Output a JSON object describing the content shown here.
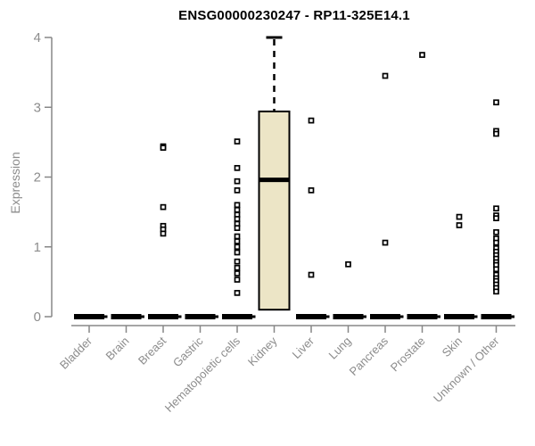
{
  "colors": {
    "title": "#000000",
    "axis": "#878787",
    "label": "#8c8c8c",
    "box_fill": "#ece5c6",
    "box_border": "#000000",
    "point": "#000000"
  },
  "chart_data": {
    "type": "boxplot",
    "title": "ENSG00000230247 - RP11-325E14.1",
    "ylabel": "Expression",
    "xlabel": "",
    "ylim": [
      0,
      4
    ],
    "yticks": [
      0,
      1,
      2,
      3,
      4
    ],
    "grid": false,
    "legend": false,
    "categories": [
      "Bladder",
      "Brain",
      "Breast",
      "Gastric",
      "Hematopoietic cells",
      "Kidney",
      "Liver",
      "Lung",
      "Pancreas",
      "Prostate",
      "Skin",
      "Unknown / Other"
    ],
    "boxes": [
      {
        "category": "Bladder",
        "q1": 0,
        "median": 0,
        "q3": 0,
        "whisker_low": 0,
        "whisker_high": 0,
        "outliers": []
      },
      {
        "category": "Brain",
        "q1": 0,
        "median": 0,
        "q3": 0,
        "whisker_low": 0,
        "whisker_high": 0,
        "outliers": []
      },
      {
        "category": "Breast",
        "q1": 0,
        "median": 0,
        "q3": 0,
        "whisker_low": 0,
        "whisker_high": 0,
        "outliers": [
          2.44,
          2.42,
          1.57,
          1.3,
          1.25,
          1.19
        ]
      },
      {
        "category": "Gastric",
        "q1": 0,
        "median": 0,
        "q3": 0,
        "whisker_low": 0,
        "whisker_high": 0,
        "outliers": []
      },
      {
        "category": "Hematopoietic cells",
        "q1": 0,
        "median": 0,
        "q3": 0,
        "whisker_low": 0,
        "whisker_high": 0,
        "outliers": [
          2.51,
          2.13,
          1.94,
          1.81,
          1.6,
          1.53,
          1.46,
          1.4,
          1.33,
          1.27,
          1.15,
          1.08,
          1.0,
          0.92,
          0.79,
          0.7,
          0.62,
          0.53,
          0.34
        ]
      },
      {
        "category": "Kidney",
        "q1": 0.1,
        "median": 1.96,
        "q3": 2.94,
        "whisker_low": 0.1,
        "whisker_high": 4.0,
        "outliers": []
      },
      {
        "category": "Liver",
        "q1": 0,
        "median": 0,
        "q3": 0,
        "whisker_low": 0,
        "whisker_high": 0,
        "outliers": [
          2.81,
          1.81,
          0.6
        ]
      },
      {
        "category": "Lung",
        "q1": 0,
        "median": 0,
        "q3": 0,
        "whisker_low": 0,
        "whisker_high": 0,
        "outliers": [
          0.75
        ]
      },
      {
        "category": "Pancreas",
        "q1": 0,
        "median": 0,
        "q3": 0,
        "whisker_low": 0,
        "whisker_high": 0,
        "outliers": [
          3.45,
          1.06
        ]
      },
      {
        "category": "Prostate",
        "q1": 0,
        "median": 0,
        "q3": 0,
        "whisker_low": 0,
        "whisker_high": 0,
        "outliers": [
          3.75
        ]
      },
      {
        "category": "Skin",
        "q1": 0,
        "median": 0,
        "q3": 0,
        "whisker_low": 0,
        "whisker_high": 0,
        "outliers": [
          1.43,
          1.31
        ]
      },
      {
        "category": "Unknown / Other",
        "q1": 0,
        "median": 0,
        "q3": 0,
        "whisker_low": 0,
        "whisker_high": 0,
        "outliers": [
          3.07,
          2.66,
          2.62,
          1.55,
          1.45,
          1.41,
          1.21,
          1.12,
          1.06,
          0.98,
          0.93,
          0.88,
          0.83,
          0.78,
          0.74,
          0.68,
          0.6,
          0.55,
          0.51,
          0.46,
          0.41,
          0.36
        ]
      }
    ]
  }
}
